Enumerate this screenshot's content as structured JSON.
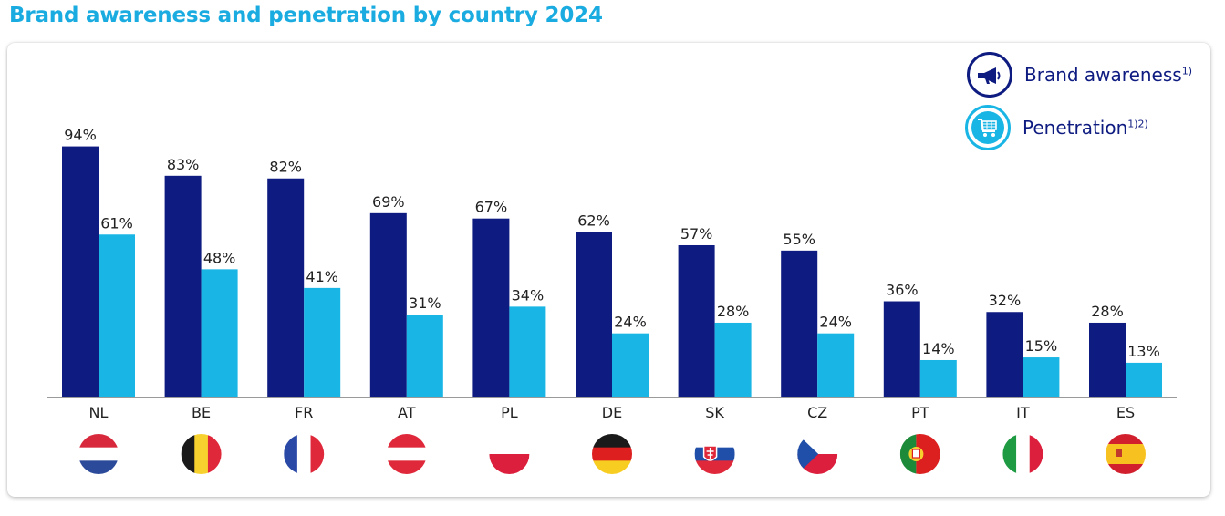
{
  "page": {
    "title": "Brand awareness and penetration by country 2024"
  },
  "legend": {
    "awareness_label": "Brand awareness",
    "awareness_sup": "1)",
    "penetration_label": "Penetration",
    "penetration_sup": "1)2)",
    "awareness_icon": "megaphone-icon",
    "penetration_icon": "shopping-cart-icon"
  },
  "colors": {
    "awareness": "#0e1b80",
    "penetration": "#19b6e5",
    "title": "#1aace0",
    "label": "#222222"
  },
  "chart_data": {
    "type": "bar",
    "title": "Brand awareness and penetration by country 2024",
    "xlabel": "",
    "ylabel": "",
    "ylim": [
      0,
      100
    ],
    "grid": false,
    "legend_position": "top-right",
    "categories": [
      "NL",
      "BE",
      "FR",
      "AT",
      "PL",
      "DE",
      "SK",
      "CZ",
      "PT",
      "IT",
      "ES"
    ],
    "series": [
      {
        "name": "Brand awareness",
        "values": [
          94,
          83,
          82,
          69,
          67,
          62,
          57,
          55,
          36,
          32,
          28
        ]
      },
      {
        "name": "Penetration",
        "values": [
          61,
          48,
          41,
          31,
          34,
          24,
          28,
          24,
          14,
          15,
          13
        ]
      }
    ],
    "value_suffix": "%"
  },
  "flags": [
    {
      "code": "NL",
      "name": "netherlands-flag-icon"
    },
    {
      "code": "BE",
      "name": "belgium-flag-icon"
    },
    {
      "code": "FR",
      "name": "france-flag-icon"
    },
    {
      "code": "AT",
      "name": "austria-flag-icon"
    },
    {
      "code": "PL",
      "name": "poland-flag-icon"
    },
    {
      "code": "DE",
      "name": "germany-flag-icon"
    },
    {
      "code": "SK",
      "name": "slovakia-flag-icon"
    },
    {
      "code": "CZ",
      "name": "czech-flag-icon"
    },
    {
      "code": "PT",
      "name": "portugal-flag-icon"
    },
    {
      "code": "IT",
      "name": "italy-flag-icon"
    },
    {
      "code": "ES",
      "name": "spain-flag-icon"
    }
  ]
}
